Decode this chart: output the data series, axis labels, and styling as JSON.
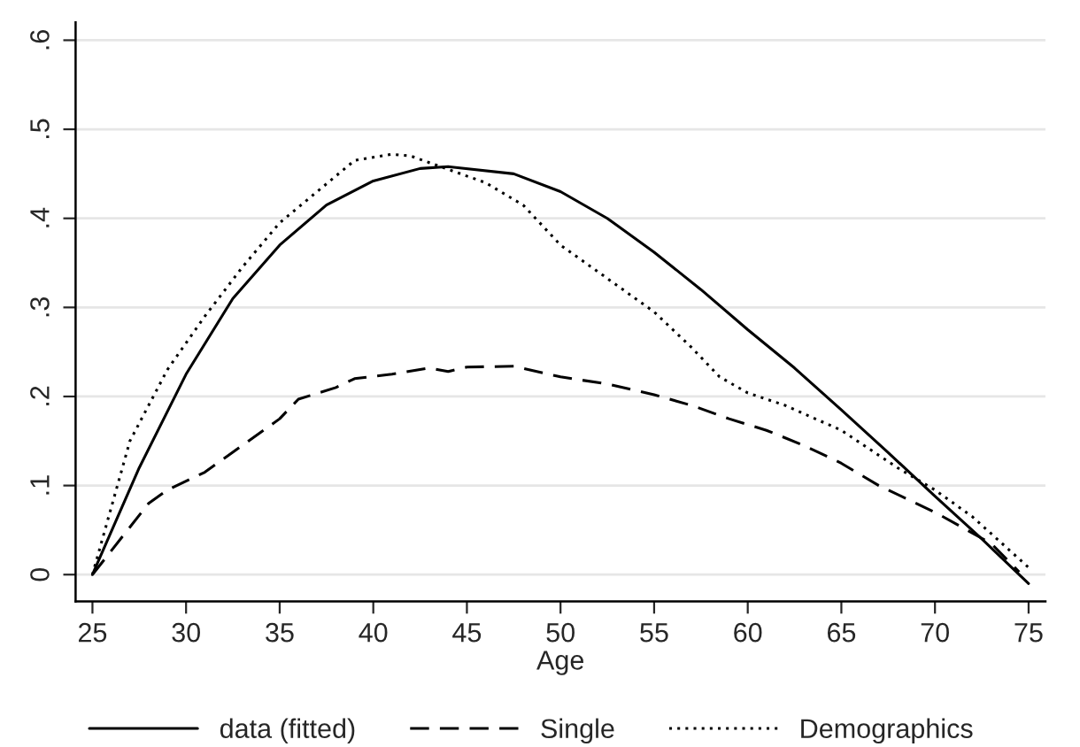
{
  "chart_data": {
    "type": "line",
    "xlabel": "Age",
    "xlim": [
      24.1,
      75.9
    ],
    "ylim": [
      -0.03,
      0.62
    ],
    "xticks": [
      25,
      30,
      35,
      40,
      45,
      50,
      55,
      60,
      65,
      70,
      75
    ],
    "yticks": [
      0,
      {
        "value": 0.1,
        "label": ".1"
      },
      {
        "value": 0.2,
        "label": ".2"
      },
      {
        "value": 0.3,
        "label": ".3"
      },
      {
        "value": 0.4,
        "label": ".4"
      },
      {
        "value": 0.5,
        "label": ".5"
      },
      {
        "value": 0.6,
        "label": ".6"
      }
    ],
    "grid": "y",
    "legend": "bottom",
    "series": [
      {
        "name": "data (fitted)",
        "color": "#000000",
        "line_style": "solid",
        "x": [
          25,
          27.5,
          30,
          32.5,
          35,
          37.5,
          40,
          42.5,
          44,
          47.5,
          50,
          52.5,
          55,
          57.5,
          60,
          62.5,
          65,
          67.5,
          70,
          72.5,
          75
        ],
        "values": [
          0,
          0.12,
          0.225,
          0.31,
          0.37,
          0.415,
          0.442,
          0.456,
          0.458,
          0.45,
          0.43,
          0.4,
          0.362,
          0.32,
          0.275,
          0.232,
          0.185,
          0.137,
          0.088,
          0.04,
          -0.01
        ]
      },
      {
        "name": "Single",
        "color": "#000000",
        "line_style": "dashed",
        "x": [
          25,
          28,
          29,
          31,
          33,
          35,
          36,
          38,
          39,
          41,
          43,
          44,
          45,
          47.5,
          50,
          52.5,
          55,
          57,
          59,
          61,
          63,
          65,
          67,
          70,
          73,
          74.5
        ],
        "values": [
          0,
          0.08,
          0.095,
          0.115,
          0.145,
          0.175,
          0.197,
          0.21,
          0.22,
          0.225,
          0.232,
          0.228,
          0.233,
          0.234,
          0.222,
          0.214,
          0.202,
          0.19,
          0.175,
          0.162,
          0.145,
          0.125,
          0.1,
          0.07,
          0.035,
          0.003
        ]
      },
      {
        "name": "Demographics",
        "color": "#000000",
        "line_style": "dotted",
        "x": [
          25,
          27,
          29,
          31,
          33,
          35,
          37,
          39,
          41,
          42,
          44,
          46,
          48,
          50,
          52,
          55,
          57,
          58.5,
          60,
          62,
          65,
          68,
          70,
          72,
          75
        ],
        "values": [
          0,
          0.15,
          0.23,
          0.29,
          0.345,
          0.395,
          0.43,
          0.465,
          0.472,
          0.47,
          0.455,
          0.44,
          0.415,
          0.37,
          0.34,
          0.295,
          0.255,
          0.222,
          0.204,
          0.19,
          0.162,
          0.12,
          0.095,
          0.065,
          0.008
        ]
      }
    ]
  }
}
